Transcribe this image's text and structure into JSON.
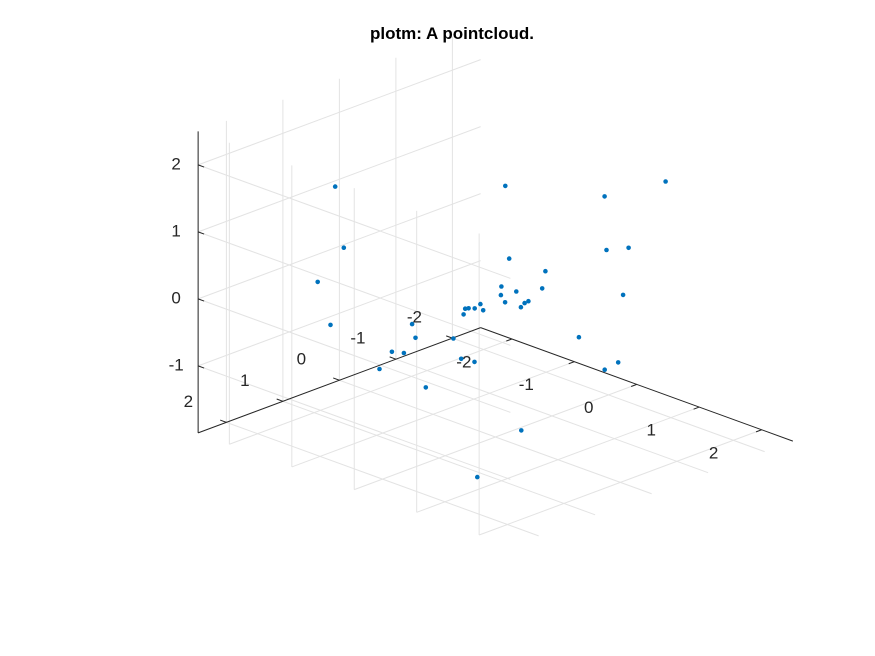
{
  "chart_data": {
    "type": "scatter",
    "projection": "3d",
    "title": "plotm: A pointcloud.",
    "xlabel": "",
    "ylabel": "",
    "zlabel": "",
    "xlim": [
      -2.5,
      2.5
    ],
    "ylim": [
      -2.5,
      2.5
    ],
    "zlim": [
      -2,
      2.5
    ],
    "xticks": [
      -2,
      -1,
      0,
      1,
      2
    ],
    "yticks": [
      -2,
      -1,
      0,
      1,
      2
    ],
    "zticks": [
      -1,
      0,
      1,
      2
    ],
    "xtick_labels": [
      "-2",
      "-1",
      "0",
      "1",
      "2"
    ],
    "ytick_labels": [
      "-2",
      "-1",
      "0",
      "1",
      "2"
    ],
    "ztick_labels": [
      "-1",
      "0",
      "1",
      "2"
    ],
    "grid": true,
    "marker_color": "#0072BD",
    "x": [
      -0.39,
      1.29,
      0.69,
      0.05,
      0.96,
      0.25,
      -0.61,
      -0.51,
      -0.21,
      0.12,
      -0.05,
      -0.43,
      -0.34,
      0.18,
      0.34,
      0.41,
      1.0,
      0.69,
      -0.23,
      0.68,
      1.52,
      1.22,
      -1.2,
      -1.43,
      -1.2,
      -0.99,
      -0.83,
      1.5,
      0.37,
      0.63,
      0.49,
      0.14,
      0.28,
      -0.07,
      0.11,
      0.03,
      0.04,
      0.15,
      -0.06,
      0.21
    ],
    "y": [
      -0.06,
      0.97,
      -1.17,
      -1.42,
      -1.11,
      1.51,
      1.16,
      1.49,
      1.39,
      0.74,
      0.69,
      0.94,
      -2.34,
      -0.25,
      -0.14,
      1.93,
      -1.25,
      -0.12,
      0.31,
      -1.18,
      -1.33,
      1.67,
      -1.5,
      1.34,
      1.82,
      1.59,
      1.92,
      -0.6,
      0.04,
      -0.13,
      -0.04,
      0.05,
      0.14,
      0.19,
      0.49,
      0.25,
      0.58,
      0.07,
      0.41,
      -0.01
    ],
    "z": [
      -1.03,
      -1.16,
      -1.13,
      -0.94,
      -0.91,
      -0.7,
      -0.57,
      -0.69,
      -0.38,
      -0.56,
      -0.33,
      -0.37,
      -0.06,
      -0.08,
      0.07,
      0.43,
      0.77,
      0.67,
      -0.15,
      1.45,
      1.91,
      -1.66,
      0.87,
      -0.39,
      0.48,
      0.99,
      2.06,
      0.44,
      0.31,
      0.39,
      0.18,
      0.31,
      0.15,
      0.02,
      0.11,
      -0.02,
      0.11,
      0.19,
      0.03,
      0.73
    ]
  }
}
